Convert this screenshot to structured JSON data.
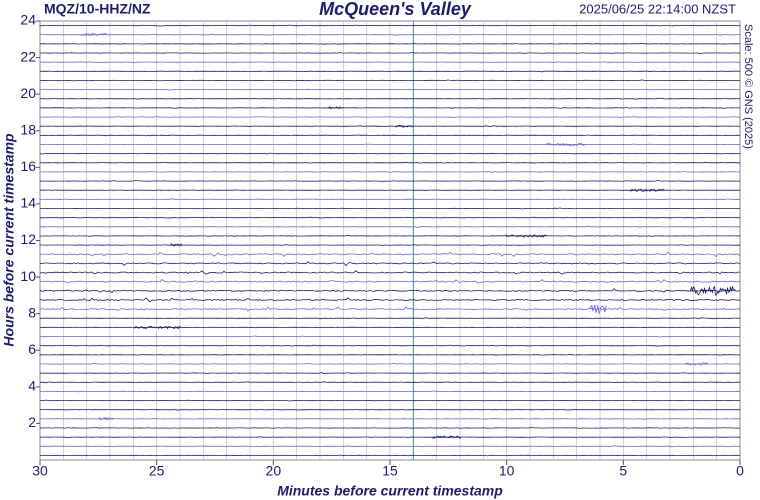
{
  "chart_data": {
    "type": "helicorder",
    "title": "McQueen's Valley",
    "station": "MQZ/10-HHZ/NZ",
    "timestamp": "2025/06/25 22:14:00 NZST",
    "scale": "Scale: 500 © GNS (2025)",
    "xlabel": "Minutes before current timestamp",
    "ylabel": "Hours before current timestamp",
    "xlim": [
      30,
      0
    ],
    "xticks": [
      30,
      25,
      20,
      15,
      10,
      5,
      0
    ],
    "ylim": [
      0,
      24
    ],
    "yticks": [
      2,
      4,
      6,
      8,
      10,
      12,
      14,
      16,
      18,
      20,
      22,
      24
    ],
    "marker_x": 14,
    "grid": true,
    "colors": [
      "#1c1c6b",
      "#7a62d6"
    ]
  }
}
